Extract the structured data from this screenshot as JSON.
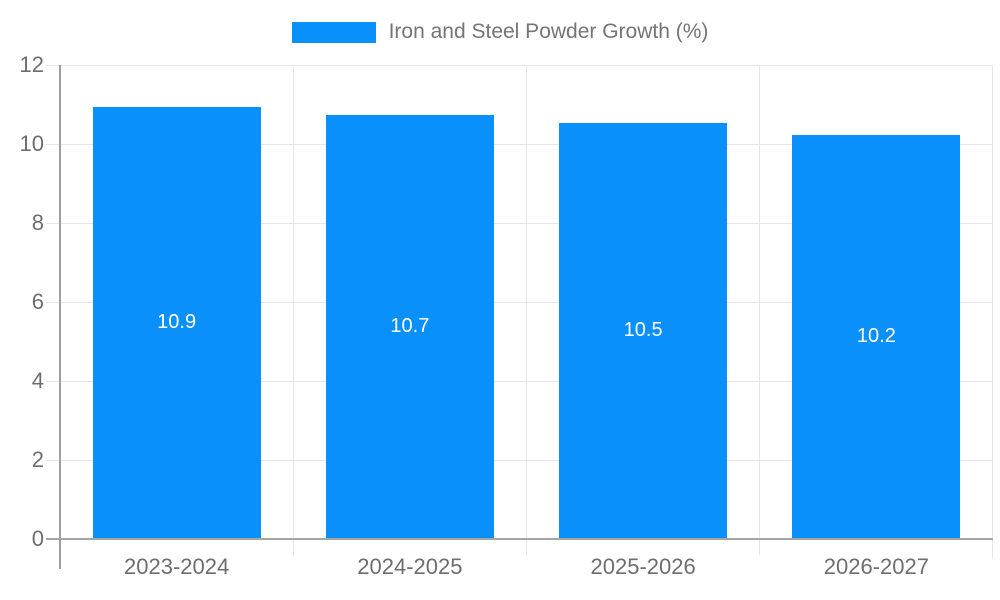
{
  "legend": {
    "label": "Iron and Steel Powder Growth (%)"
  },
  "chart_data": {
    "type": "bar",
    "title": "",
    "series_name": "Iron and Steel Powder Growth (%)",
    "categories": [
      "2023-2024",
      "2024-2025",
      "2025-2026",
      "2026-2027"
    ],
    "values": [
      10.9,
      10.7,
      10.5,
      10.2
    ],
    "bar_labels": [
      "10.9",
      "10.7",
      "10.5",
      "10.2"
    ],
    "xlabel": "",
    "ylabel": "",
    "ylim": [
      0,
      12
    ],
    "yticks": [
      0,
      2,
      4,
      6,
      8,
      10,
      12
    ],
    "grid": true,
    "legend_position": "top-center",
    "bar_color": "#0A90FA",
    "bar_label_color": "#FFFFFF",
    "legend_text_color": "#757575",
    "axis_text_color": "#6E6E6E",
    "gridline_color": "#E6E6E6",
    "x_axis_line_color": "#A6A6A6",
    "y_axis_line_color": "#9E9E9E",
    "background_color": "#FFFFFF"
  }
}
